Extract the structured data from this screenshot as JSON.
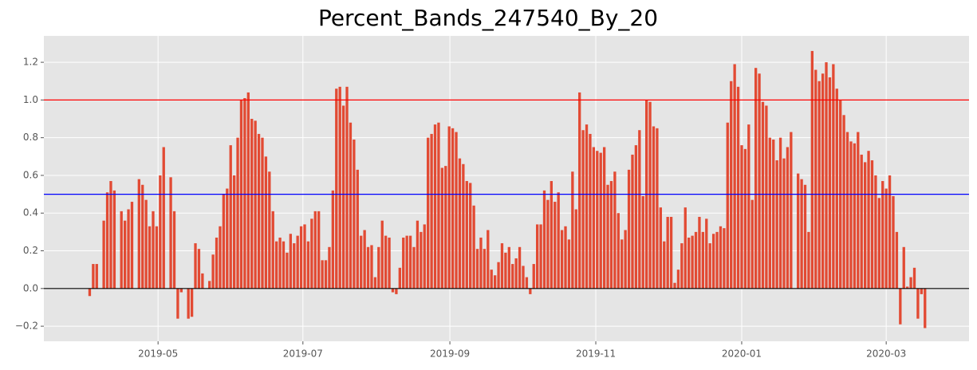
{
  "chart_data": {
    "type": "bar",
    "title": "Percent_Bands_247540_By_20",
    "color": "#e24a33",
    "grid": true,
    "values": [
      0.0,
      -0.04,
      0.13,
      0.13,
      null,
      0.36,
      0.51,
      0.57,
      0.52,
      null,
      0.41,
      0.36,
      0.42,
      0.46,
      null,
      0.58,
      0.55,
      0.47,
      0.33,
      0.41,
      0.33,
      0.6,
      0.75,
      null,
      0.59,
      0.41,
      -0.16,
      -0.02,
      null,
      -0.16,
      -0.15,
      0.24,
      0.21,
      0.08,
      null,
      0.04,
      0.18,
      0.27,
      0.33,
      0.5,
      0.53,
      0.76,
      0.6,
      0.8,
      1.0,
      1.01,
      1.04,
      0.9,
      0.89,
      0.82,
      0.8,
      0.7,
      0.62,
      0.41,
      0.25,
      0.27,
      0.25,
      0.19,
      0.29,
      0.24,
      0.28,
      0.33,
      0.34,
      0.25,
      0.37,
      0.41,
      0.41,
      0.15,
      0.15,
      0.22,
      0.52,
      1.06,
      1.07,
      0.97,
      1.07,
      0.88,
      0.79,
      0.63,
      0.28,
      0.31,
      0.22,
      0.23,
      0.06,
      0.22,
      0.36,
      0.28,
      0.27,
      -0.02,
      -0.03,
      0.11,
      0.27,
      0.28,
      0.28,
      0.22,
      0.36,
      0.3,
      0.34,
      0.8,
      0.82,
      0.87,
      0.88,
      0.64,
      0.65,
      0.86,
      0.85,
      0.83,
      0.69,
      0.66,
      0.57,
      0.56,
      0.44,
      0.21,
      0.27,
      0.21,
      0.31,
      0.1,
      0.07,
      0.14,
      0.24,
      0.19,
      0.22,
      0.13,
      0.16,
      0.22,
      0.12,
      0.06,
      -0.03,
      0.13,
      0.34,
      0.34,
      0.52,
      0.47,
      0.57,
      0.46,
      0.51,
      0.31,
      0.33,
      0.26,
      0.62,
      0.42,
      1.04,
      0.84,
      0.87,
      0.82,
      0.75,
      0.73,
      0.72,
      0.75,
      0.55,
      0.57,
      0.62,
      0.4,
      0.26,
      0.31,
      0.63,
      0.71,
      0.76,
      0.84,
      0.49,
      1.0,
      0.99,
      0.86,
      0.85,
      0.43,
      0.25,
      0.38,
      0.38,
      0.03,
      0.1,
      0.24,
      0.43,
      0.27,
      0.28,
      0.3,
      0.38,
      0.3,
      0.37,
      0.24,
      0.29,
      0.3,
      0.33,
      0.32,
      0.88,
      1.1,
      1.19,
      1.07,
      0.76,
      0.74,
      0.87,
      0.47,
      1.17,
      1.14,
      0.99,
      0.97,
      0.8,
      0.79,
      0.68,
      0.8,
      0.69,
      0.75,
      0.83,
      null,
      0.61,
      0.58,
      0.55,
      0.3,
      1.26,
      1.16,
      1.1,
      1.14,
      1.2,
      1.12,
      1.19,
      1.06,
      1.0,
      0.92,
      0.83,
      0.78,
      0.77,
      0.83,
      0.71,
      0.67,
      0.73,
      0.68,
      0.6,
      0.48,
      0.57,
      0.53,
      0.6,
      0.49,
      0.3,
      -0.19,
      0.22,
      0.01,
      0.06,
      0.11,
      -0.16,
      -0.03,
      -0.21
    ],
    "xlim": [
      -12,
      250.5
    ],
    "xticks": [
      {
        "value": 20.4,
        "label": "2019-05"
      },
      {
        "value": 61.5,
        "label": "2019-07"
      },
      {
        "value": 103.2,
        "label": "2019-09"
      },
      {
        "value": 144.6,
        "label": "2019-11"
      },
      {
        "value": 186,
        "label": "2020-01"
      },
      {
        "value": 227,
        "label": "2020-03"
      }
    ],
    "ylim": [
      -0.28,
      1.34
    ],
    "yticks": [
      {
        "value": -0.2,
        "label": "−0.2"
      },
      {
        "value": 0.0,
        "label": "0.0"
      },
      0.2,
      0.4,
      0.6,
      0.8,
      {
        "value": 1.0,
        "label": "1.0"
      },
      1.2
    ],
    "hlines": [
      {
        "value": 1.0,
        "color": "red"
      },
      {
        "value": 0.5,
        "color": "blue"
      },
      {
        "value": 0.0,
        "color": "black"
      }
    ]
  }
}
